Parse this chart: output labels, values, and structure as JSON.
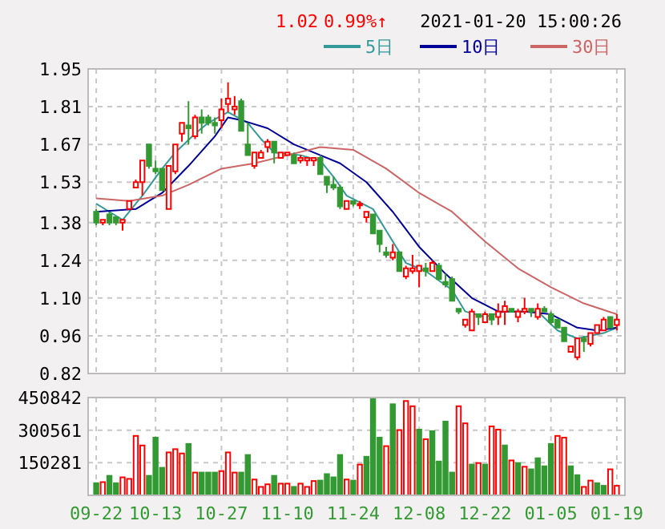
{
  "chart_data": [
    {
      "type": "candlestick",
      "annotations": [
        "1.02",
        "0.99%↑",
        "2021-01-20 15:00:26"
      ],
      "categories": [
        null,
        null,
        null,
        null,
        null,
        null,
        null,
        null,
        null,
        null,
        null,
        null,
        null,
        null,
        null,
        null,
        null,
        null,
        null,
        null,
        null,
        null,
        null,
        null,
        null,
        null,
        null,
        null,
        null,
        null,
        null,
        null,
        null,
        null,
        null,
        null,
        null,
        null,
        null,
        null,
        null,
        null,
        null,
        null,
        null,
        null,
        null,
        null,
        null,
        null,
        null,
        null,
        null,
        null,
        null,
        null,
        null,
        null,
        null,
        null,
        null,
        null,
        null,
        null,
        null,
        null,
        null,
        null,
        null,
        null,
        null,
        null,
        null,
        null,
        null,
        null,
        null,
        null,
        null,
        null
      ],
      "ohlc": [
        [
          1.42,
          1.43,
          1.37,
          1.38
        ],
        [
          1.38,
          1.39,
          1.37,
          1.39
        ],
        [
          1.41,
          1.42,
          1.37,
          1.38
        ],
        [
          1.4,
          1.4,
          1.37,
          1.38
        ],
        [
          1.38,
          1.39,
          1.35,
          1.39
        ],
        [
          1.43,
          1.46,
          1.43,
          1.46
        ],
        [
          1.51,
          1.54,
          1.51,
          1.53
        ],
        [
          1.53,
          1.61,
          1.48,
          1.61
        ],
        [
          1.67,
          1.67,
          1.58,
          1.59
        ],
        [
          1.58,
          1.61,
          1.56,
          1.57
        ],
        [
          1.58,
          1.58,
          1.5,
          1.5
        ],
        [
          1.43,
          1.59,
          1.43,
          1.59
        ],
        [
          1.57,
          1.67,
          1.56,
          1.67
        ],
        [
          1.71,
          1.75,
          1.68,
          1.75
        ],
        [
          1.74,
          1.83,
          1.67,
          1.73
        ],
        [
          1.7,
          1.78,
          1.69,
          1.77
        ],
        [
          1.77,
          1.8,
          1.71,
          1.75
        ],
        [
          1.77,
          1.78,
          1.74,
          1.75
        ],
        [
          1.75,
          1.77,
          1.71,
          1.74
        ],
        [
          1.76,
          1.84,
          1.73,
          1.8
        ],
        [
          1.82,
          1.9,
          1.79,
          1.84
        ],
        [
          1.8,
          1.85,
          1.78,
          1.81
        ],
        [
          1.83,
          1.84,
          1.72,
          1.72
        ],
        [
          1.67,
          1.75,
          1.63,
          1.63
        ],
        [
          1.59,
          1.64,
          1.58,
          1.64
        ],
        [
          1.62,
          1.65,
          1.62,
          1.64
        ],
        [
          1.66,
          1.69,
          1.64,
          1.68
        ],
        [
          1.68,
          1.68,
          1.6,
          1.64
        ],
        [
          1.62,
          1.64,
          1.62,
          1.64
        ],
        [
          1.63,
          1.64,
          1.63,
          1.64
        ],
        [
          1.63,
          1.64,
          1.6,
          1.6
        ],
        [
          1.61,
          1.63,
          1.6,
          1.62
        ],
        [
          1.61,
          1.62,
          1.59,
          1.62
        ],
        [
          1.61,
          1.62,
          1.59,
          1.62
        ],
        [
          1.62,
          1.63,
          1.56,
          1.56
        ],
        [
          1.55,
          1.55,
          1.49,
          1.52
        ],
        [
          1.52,
          1.55,
          1.5,
          1.51
        ],
        [
          1.51,
          1.52,
          1.43,
          1.44
        ],
        [
          1.43,
          1.46,
          1.43,
          1.46
        ],
        [
          1.46,
          1.46,
          1.44,
          1.45
        ],
        [
          1.45,
          1.46,
          1.43,
          1.45
        ],
        [
          1.4,
          1.42,
          1.38,
          1.42
        ],
        [
          1.41,
          1.41,
          1.34,
          1.34
        ],
        [
          1.35,
          1.35,
          1.27,
          1.3
        ],
        [
          1.27,
          1.29,
          1.25,
          1.26
        ],
        [
          1.25,
          1.3,
          1.24,
          1.27
        ],
        [
          1.27,
          1.27,
          1.2,
          1.2
        ],
        [
          1.18,
          1.22,
          1.17,
          1.21
        ],
        [
          1.2,
          1.26,
          1.19,
          1.21
        ],
        [
          1.2,
          1.22,
          1.14,
          1.22
        ],
        [
          1.21,
          1.23,
          1.18,
          1.2
        ],
        [
          1.2,
          1.24,
          1.2,
          1.23
        ],
        [
          1.22,
          1.23,
          1.17,
          1.17
        ],
        [
          1.16,
          1.19,
          1.14,
          1.15
        ],
        [
          1.17,
          1.18,
          1.09,
          1.09
        ],
        [
          1.06,
          1.06,
          1.04,
          1.05
        ],
        [
          1.0,
          1.02,
          0.99,
          1.02
        ],
        [
          0.98,
          1.06,
          0.98,
          1.05
        ],
        [
          1.04,
          1.04,
          1.0,
          1.03
        ],
        [
          1.01,
          1.05,
          1.01,
          1.04
        ],
        [
          1.04,
          1.04,
          1.0,
          1.02
        ],
        [
          1.03,
          1.08,
          1.0,
          1.05
        ],
        [
          1.05,
          1.09,
          1.0,
          1.07
        ],
        [
          1.06,
          1.06,
          1.05,
          1.05
        ],
        [
          1.03,
          1.06,
          1.01,
          1.05
        ],
        [
          1.05,
          1.1,
          1.04,
          1.06
        ],
        [
          1.06,
          1.06,
          1.03,
          1.05
        ],
        [
          1.03,
          1.08,
          1.02,
          1.06
        ],
        [
          1.06,
          1.07,
          1.05,
          1.05
        ],
        [
          1.04,
          1.05,
          1.0,
          1.01
        ],
        [
          1.02,
          1.02,
          0.99,
          0.99
        ],
        [
          0.99,
          0.99,
          0.94,
          0.94
        ],
        [
          0.9,
          0.92,
          0.9,
          0.92
        ],
        [
          0.88,
          0.95,
          0.87,
          0.95
        ],
        [
          0.95,
          0.96,
          0.9,
          0.94
        ],
        [
          0.93,
          0.97,
          0.92,
          0.97
        ],
        [
          0.97,
          1.0,
          0.97,
          1.0
        ],
        [
          0.98,
          1.03,
          0.98,
          1.02
        ],
        [
          1.03,
          1.03,
          0.99,
          0.99
        ],
        [
          1.0,
          1.04,
          0.98,
          1.02
        ]
      ],
      "series": [
        {
          "name": "5日",
          "type": "line",
          "color": "#339999",
          "values": [
            1.45,
            null,
            1.42,
            null,
            1.39,
            null,
            null,
            1.48,
            null,
            null,
            1.58,
            null,
            1.64,
            null,
            null,
            1.71,
            null,
            1.75,
            null,
            null,
            1.79,
            null,
            null,
            1.75,
            null,
            1.69,
            null,
            1.64,
            null,
            null,
            null,
            1.63,
            null,
            null,
            1.61,
            null,
            1.55,
            null,
            1.48,
            null,
            null,
            null,
            1.43,
            null,
            1.35,
            null,
            null,
            1.23,
            null,
            null,
            1.2,
            null,
            null,
            null,
            1.13,
            null,
            1.05,
            null,
            null,
            1.03,
            null,
            null,
            1.05,
            null,
            null,
            null,
            null,
            1.05,
            null,
            null,
            0.98,
            null,
            null,
            0.95,
            null,
            null,
            null,
            0.97,
            null,
            0.99
          ]
        },
        {
          "name": "10日",
          "type": "line",
          "color": "#000099",
          "values": [
            1.42,
            null,
            null,
            null,
            null,
            null,
            1.43,
            null,
            null,
            null,
            1.49,
            null,
            null,
            null,
            1.59,
            null,
            null,
            null,
            1.7,
            null,
            1.77,
            null,
            1.76,
            null,
            null,
            null,
            1.73,
            null,
            null,
            null,
            1.67,
            null,
            null,
            null,
            1.63,
            null,
            null,
            1.6,
            null,
            null,
            null,
            1.53,
            null,
            null,
            null,
            1.42,
            null,
            null,
            null,
            1.29,
            null,
            null,
            null,
            1.19,
            null,
            null,
            null,
            1.1,
            null,
            null,
            null,
            1.05,
            null,
            null,
            null,
            1.05,
            null,
            null,
            null,
            1.04,
            null,
            null,
            null,
            0.99,
            null,
            null,
            0.98,
            null,
            null,
            0.99
          ]
        },
        {
          "name": "30日",
          "type": "line",
          "color": "#cc6666",
          "values": [
            1.47,
            null,
            null,
            null,
            null,
            1.46,
            null,
            null,
            null,
            null,
            1.48,
            null,
            null,
            null,
            1.52,
            null,
            null,
            null,
            null,
            1.58,
            null,
            null,
            null,
            null,
            1.6,
            null,
            null,
            null,
            null,
            1.63,
            null,
            null,
            null,
            null,
            1.66,
            null,
            null,
            null,
            null,
            1.65,
            null,
            null,
            null,
            null,
            1.58,
            null,
            null,
            null,
            null,
            1.49,
            null,
            null,
            null,
            null,
            1.42,
            null,
            null,
            null,
            null,
            1.31,
            null,
            null,
            null,
            null,
            1.21,
            null,
            null,
            null,
            null,
            1.14,
            null,
            null,
            null,
            null,
            1.08,
            null,
            null,
            null,
            null,
            1.04
          ]
        }
      ],
      "ylim": [
        0.82,
        1.95
      ],
      "yticks": [
        0.82,
        0.96,
        {
          "value": 1.1,
          "label": "1.10"
        },
        1.24,
        1.38,
        1.53,
        1.67,
        1.81,
        1.95
      ],
      "grid": true,
      "legend": "top right"
    },
    {
      "type": "bar",
      "categories": [
        "09-22",
        null,
        null,
        null,
        null,
        null,
        null,
        null,
        null,
        "10-13",
        null,
        null,
        null,
        null,
        null,
        null,
        null,
        null,
        null,
        "10-27",
        null,
        null,
        null,
        null,
        null,
        null,
        null,
        null,
        null,
        "11-10",
        null,
        null,
        null,
        null,
        null,
        null,
        null,
        null,
        null,
        "11-24",
        null,
        null,
        null,
        null,
        null,
        null,
        null,
        null,
        null,
        "12-08",
        null,
        null,
        null,
        null,
        null,
        null,
        null,
        null,
        null,
        "12-22",
        null,
        null,
        null,
        null,
        null,
        null,
        null,
        null,
        null,
        "01-05",
        null,
        null,
        null,
        null,
        null,
        null,
        null,
        null,
        null,
        "01-19"
      ],
      "values": [
        56000,
        61000,
        90000,
        56000,
        83000,
        76000,
        274000,
        230000,
        90000,
        266000,
        127000,
        198000,
        213000,
        193000,
        237000,
        105000,
        105000,
        105000,
        105000,
        112000,
        198000,
        105000,
        105000,
        186000,
        73000,
        39000,
        51000,
        90000,
        54000,
        54000,
        39000,
        54000,
        39000,
        66000,
        68000,
        98000,
        83000,
        186000,
        73000,
        68000,
        142000,
        178000,
        450000,
        266000,
        227000,
        420000,
        301000,
        435000,
        411000,
        303000,
        259000,
        296000,
        156000,
        340000,
        105000,
        411000,
        332000,
        142000,
        149000,
        142000,
        318000,
        303000,
        230000,
        161000,
        149000,
        132000,
        120000,
        171000,
        134000,
        237000,
        274000,
        266000,
        134000,
        93000,
        39000,
        68000,
        56000,
        44000,
        120000,
        44000
      ],
      "colors": [
        "#339933",
        "#ff0000",
        "#339933",
        "#339933",
        "#ff0000",
        "#ff0000",
        "#ff0000",
        "#ff0000",
        "#339933",
        "#339933",
        "#339933",
        "#ff0000",
        "#ff0000",
        "#ff0000",
        "#339933",
        "#ff0000",
        "#339933",
        "#339933",
        "#339933",
        "#ff0000",
        "#ff0000",
        "#ff0000",
        "#339933",
        "#339933",
        "#ff0000",
        "#ff0000",
        "#ff0000",
        "#339933",
        "#ff0000",
        "#ff0000",
        "#339933",
        "#ff0000",
        "#ff0000",
        "#ff0000",
        "#339933",
        "#339933",
        "#339933",
        "#339933",
        "#ff0000",
        "#339933",
        "#ff0000",
        "#339933",
        "#339933",
        "#339933",
        "#ff0000",
        "#339933",
        "#ff0000",
        "#ff0000",
        "#ff0000",
        "#339933",
        "#ff0000",
        "#339933",
        "#339933",
        "#339933",
        "#339933",
        "#ff0000",
        "#ff0000",
        "#339933",
        "#ff0000",
        "#339933",
        "#ff0000",
        "#ff0000",
        "#339933",
        "#ff0000",
        "#339933",
        "#ff0000",
        "#339933",
        "#339933",
        "#339933",
        "#339933",
        "#ff0000",
        "#ff0000",
        "#339933",
        "#339933",
        "#ff0000",
        "#ff0000",
        "#339933",
        "#339933",
        "#ff0000",
        "#ff0000"
      ],
      "ylim": [
        0,
        450842
      ],
      "yticks": [
        150281,
        300561,
        450842
      ],
      "grid": true
    }
  ]
}
